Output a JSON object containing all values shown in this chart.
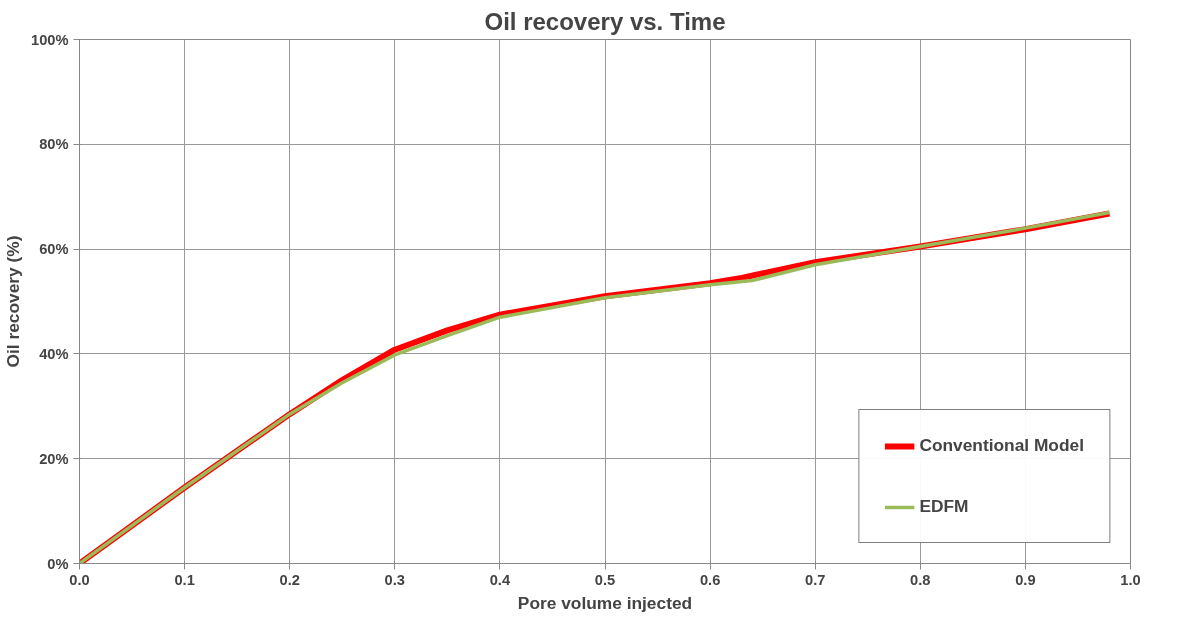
{
  "chart_data": {
    "type": "line",
    "title": "Oil recovery vs. Time",
    "xlabel": "Pore volume injected",
    "ylabel": "Oil recovery (%)",
    "series": [
      {
        "name": "Conventional Model",
        "color": "#ff0000",
        "x": [
          0,
          0.1,
          0.2,
          0.25,
          0.3,
          0.35,
          0.4,
          0.5,
          0.6,
          0.63,
          0.7,
          0.8,
          0.9,
          0.98
        ],
        "values": [
          0,
          14.5,
          28.5,
          35,
          40.8,
          44.5,
          47.5,
          51,
          53.5,
          54.5,
          57.5,
          60.5,
          63.8,
          66.8
        ]
      },
      {
        "name": "EDFM",
        "color": "#9bbb59",
        "x": [
          0,
          0.1,
          0.2,
          0.25,
          0.3,
          0.35,
          0.4,
          0.5,
          0.6,
          0.64,
          0.7,
          0.8,
          0.9,
          0.98
        ],
        "values": [
          0,
          14.5,
          28.5,
          34.5,
          39.8,
          43.5,
          47,
          50.7,
          53.2,
          54,
          57,
          60.5,
          64,
          67
        ]
      }
    ],
    "xlim": [
      0,
      1
    ],
    "xticks": [
      {
        "value": 0,
        "label": "0.0"
      },
      0.1,
      0.2,
      0.3,
      0.4,
      0.5,
      0.6,
      0.7,
      0.8,
      0.9,
      {
        "value": 1,
        "label": "1.0"
      }
    ],
    "ylim": [
      0,
      100
    ],
    "yticks": [
      {
        "value": 0,
        "label": "0%"
      },
      {
        "value": 20,
        "label": "20%"
      },
      {
        "value": 40,
        "label": "40%"
      },
      {
        "value": 60,
        "label": "60%"
      },
      {
        "value": 80,
        "label": "80%"
      },
      {
        "value": 100,
        "label": "100%"
      }
    ],
    "grid": true,
    "legend": "bottom right",
    "marker": "none",
    "line_style": "solid"
  }
}
